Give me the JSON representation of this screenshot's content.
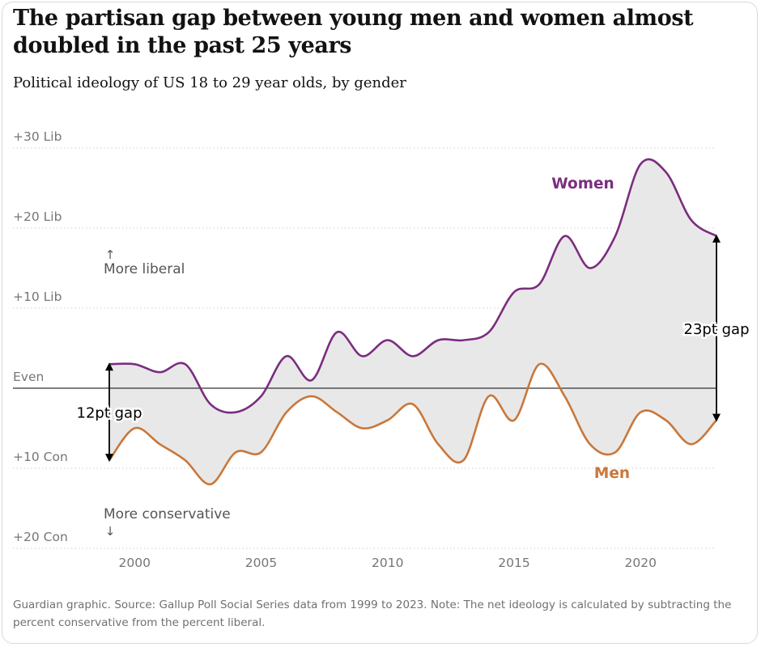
{
  "header": {
    "title": "The partisan gap between young men and women almost doubled in the past 25 years",
    "subtitle": "Political ideology of US 18 to 29 year olds, by gender"
  },
  "footnote": "Guardian graphic. Source: Gallup Poll Social Series data from 1999 to 2023. Note: The net ideology is calculated by subtracting the percent conservative from the percent liberal.",
  "colors": {
    "women": "#7b2d7f",
    "men": "#c9773a",
    "gap_fill": "#e8e8e8",
    "axis_text": "#767676",
    "gridline": "#cfcfcf"
  },
  "chart_data": {
    "type": "line",
    "title": "The partisan gap between young men and women almost doubled in the past 25 years",
    "subtitle": "Political ideology of US 18 to 29 year olds, by gender",
    "xlabel": "",
    "ylabel": "",
    "xlim": [
      1998.5,
      2023.5
    ],
    "ylim": [
      -21,
      31
    ],
    "y_ticks": [
      {
        "value": 30,
        "label": "+30 Lib"
      },
      {
        "value": 20,
        "label": "+20 Lib"
      },
      {
        "value": 10,
        "label": "+10 Lib"
      },
      {
        "value": 0,
        "label": "Even"
      },
      {
        "value": -10,
        "label": "+10 Con"
      },
      {
        "value": -20,
        "label": "+20 Con"
      }
    ],
    "x_ticks": [
      2000,
      2005,
      2010,
      2015,
      2020
    ],
    "grid": true,
    "series": [
      {
        "name": "Women",
        "color": "#7b2d7f",
        "points": [
          [
            1999,
            3
          ],
          [
            2000,
            3
          ],
          [
            2001,
            2
          ],
          [
            2002,
            3
          ],
          [
            2003,
            -2
          ],
          [
            2004,
            -3
          ],
          [
            2005,
            -1
          ],
          [
            2006,
            4
          ],
          [
            2007,
            1
          ],
          [
            2008,
            7
          ],
          [
            2009,
            4
          ],
          [
            2010,
            6
          ],
          [
            2011,
            4
          ],
          [
            2012,
            6
          ],
          [
            2013,
            6
          ],
          [
            2014,
            7
          ],
          [
            2015,
            12
          ],
          [
            2016,
            13
          ],
          [
            2017,
            19
          ],
          [
            2018,
            15
          ],
          [
            2019,
            19
          ],
          [
            2020,
            28
          ],
          [
            2021,
            27
          ],
          [
            2022,
            21
          ],
          [
            2023,
            19
          ]
        ]
      },
      {
        "name": "Men",
        "color": "#c9773a",
        "points": [
          [
            1999,
            -9
          ],
          [
            2000,
            -5
          ],
          [
            2001,
            -7
          ],
          [
            2002,
            -9
          ],
          [
            2003,
            -12
          ],
          [
            2004,
            -8
          ],
          [
            2005,
            -8
          ],
          [
            2006,
            -3
          ],
          [
            2007,
            -1
          ],
          [
            2008,
            -3
          ],
          [
            2009,
            -5
          ],
          [
            2010,
            -4
          ],
          [
            2011,
            -2
          ],
          [
            2012,
            -7
          ],
          [
            2013,
            -9
          ],
          [
            2014,
            -1
          ],
          [
            2015,
            -4
          ],
          [
            2016,
            3
          ],
          [
            2017,
            -1
          ],
          [
            2018,
            -7
          ],
          [
            2019,
            -8
          ],
          [
            2020,
            -3
          ],
          [
            2021,
            -4
          ],
          [
            2022,
            -7
          ],
          [
            2023,
            -4
          ]
        ]
      }
    ],
    "annotations": {
      "more_liberal": "More liberal",
      "more_conservative": "More conservative",
      "gap_start": {
        "label": "12pt gap",
        "x": 1999,
        "from": 3,
        "to": -9
      },
      "gap_end": {
        "label": "23pt gap",
        "x": 2023,
        "from": 19,
        "to": -4
      }
    }
  }
}
